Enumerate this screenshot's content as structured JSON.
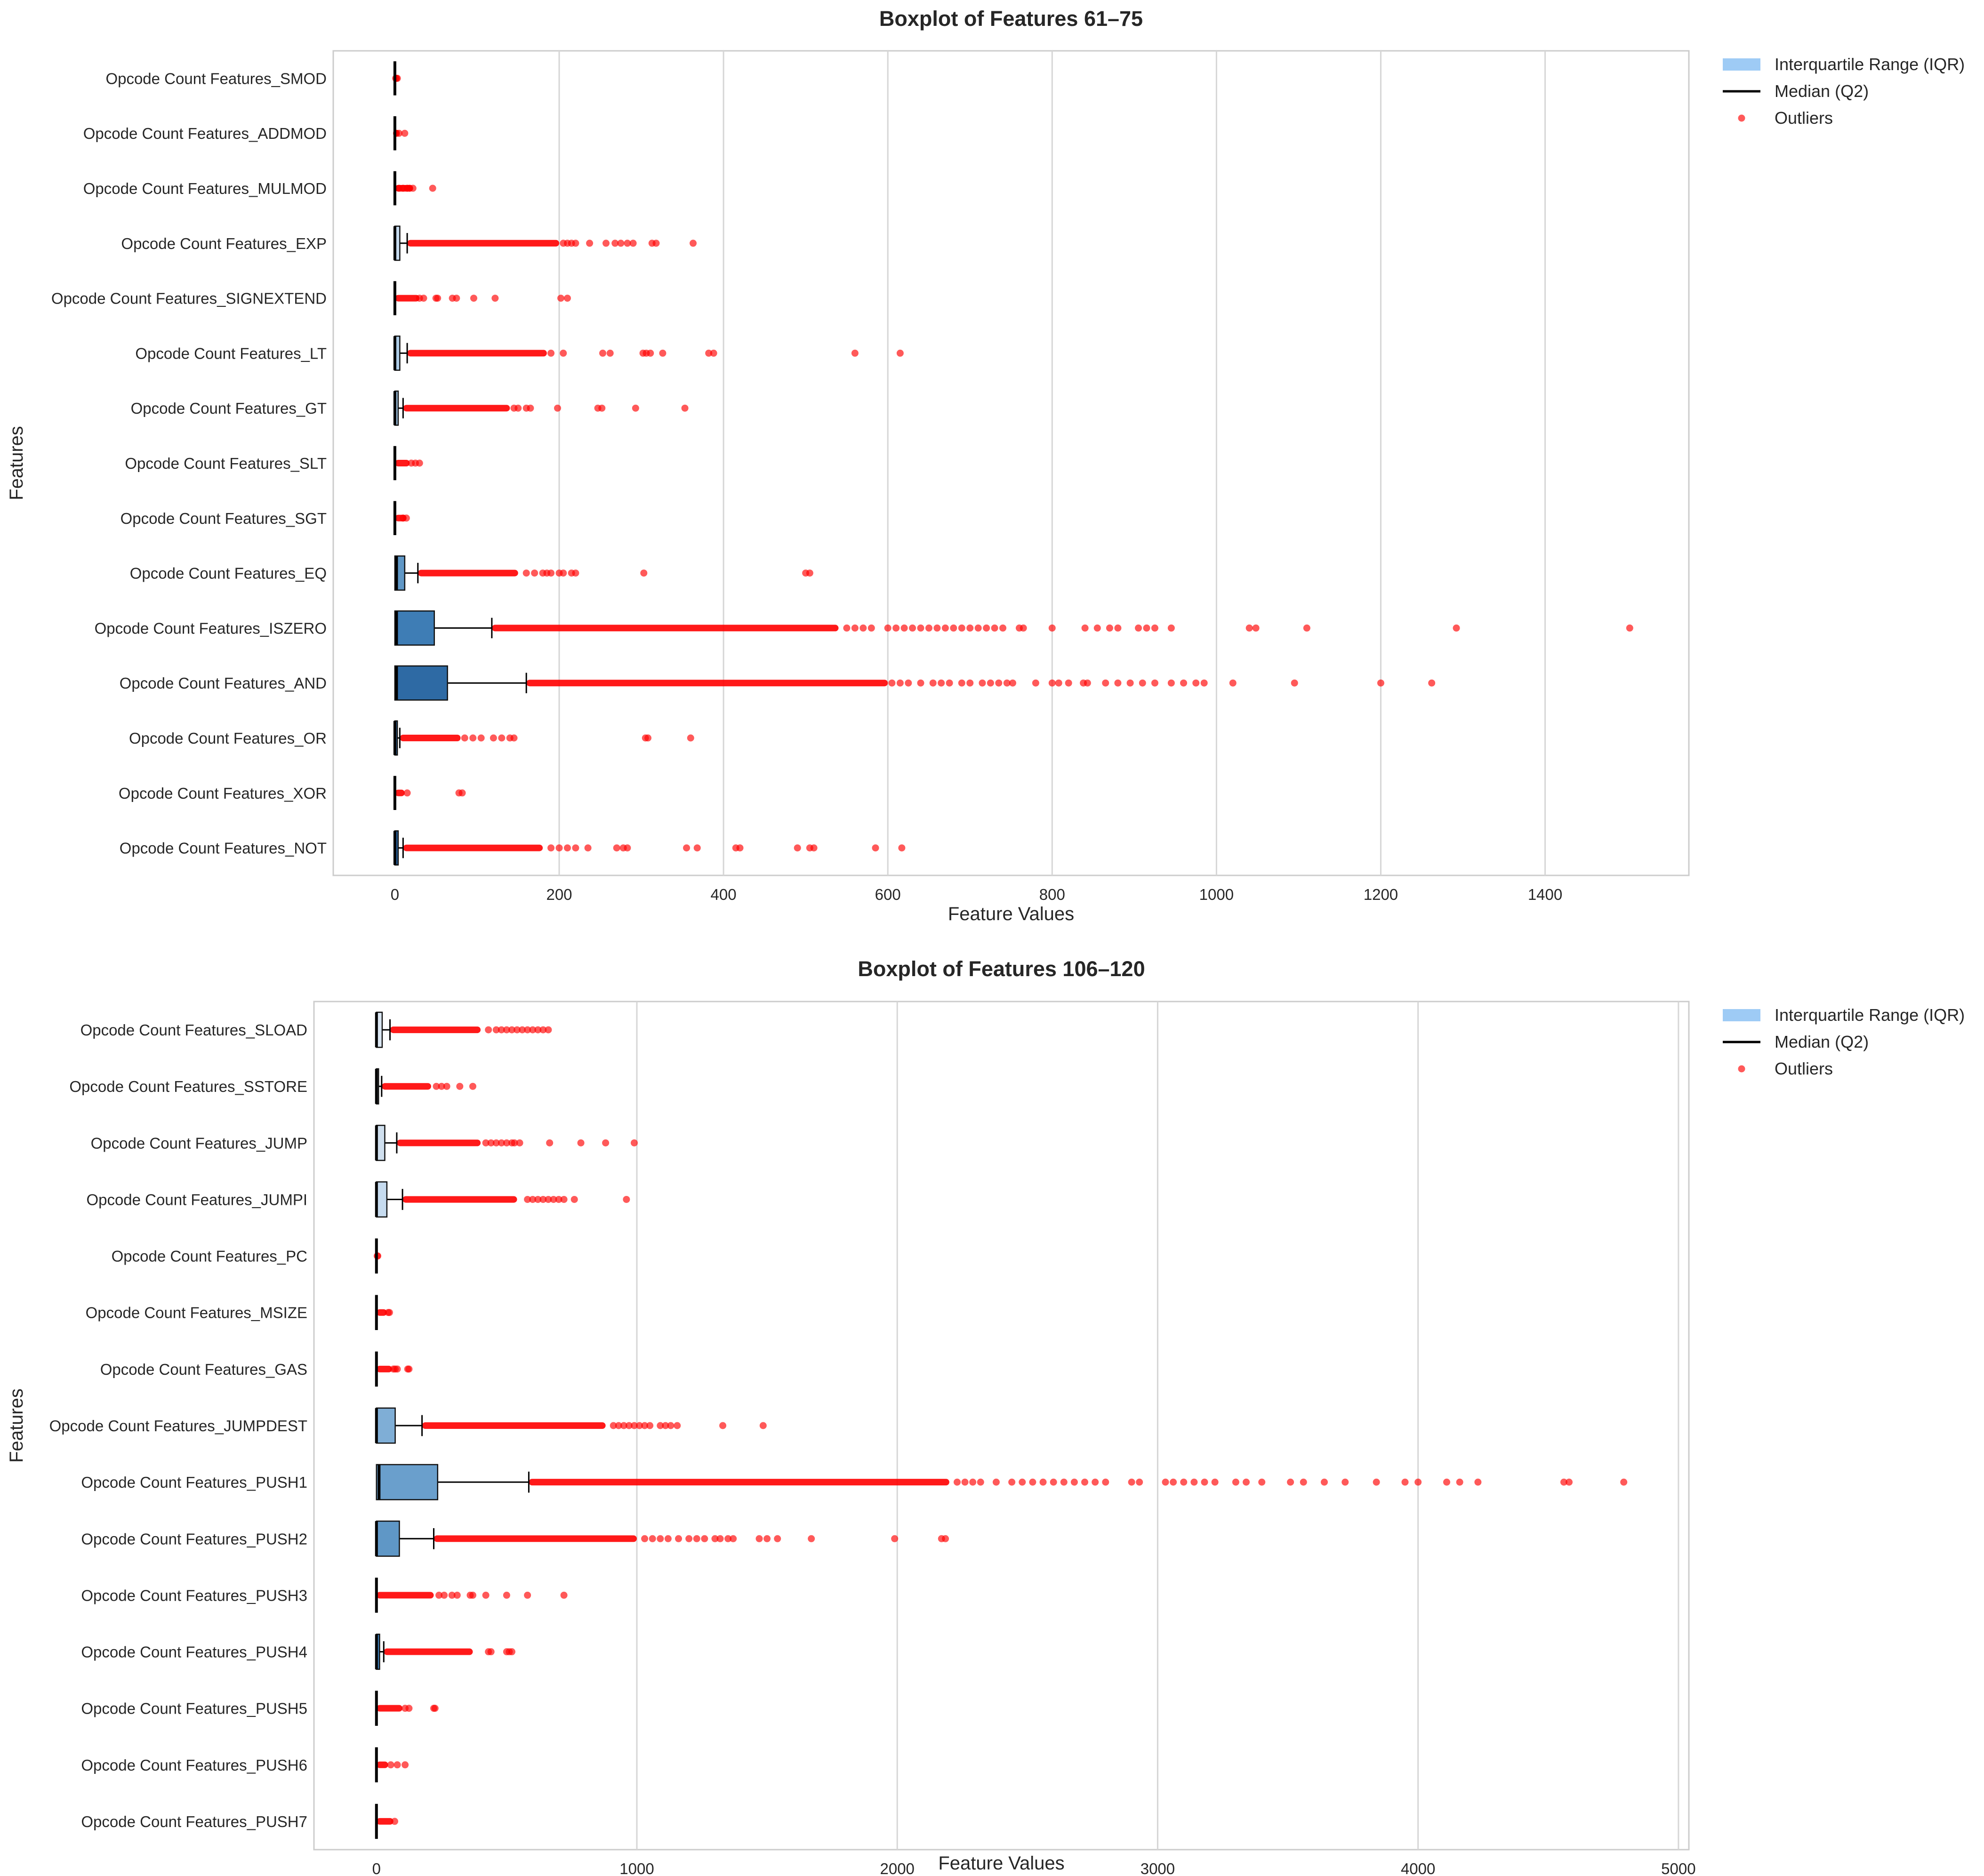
{
  "legend": {
    "iqr_label": "Interquartile Range (IQR)",
    "median_label": "Median (Q2)",
    "outliers_label": "Outliers"
  },
  "colors": {
    "median": "#000000",
    "whisker": "#000000",
    "outlier": "#ff0000",
    "legend_iqr": "#9ecbf5",
    "grid": "#d6d6d6",
    "frame": "#cccccc"
  },
  "chart_data": [
    {
      "type": "boxplot",
      "orientation": "horizontal",
      "title": "Boxplot of Features 61–75",
      "xlabel": "Feature Values",
      "ylabel": "Features",
      "xlim": [
        -75,
        1575
      ],
      "xticks": [
        0,
        200,
        400,
        600,
        800,
        1000,
        1200,
        1400
      ],
      "grid": "vertical",
      "legend_position": "outside-top-right",
      "features": [
        {
          "name": "Opcode Count Features_SMOD",
          "q1": 0,
          "median": 0,
          "q3": 0,
          "whisker_low": 0,
          "whisker_high": 0,
          "color": "#dbe7f3",
          "outliers_dense_to": 3,
          "outliers": [
            1,
            2,
            3
          ]
        },
        {
          "name": "Opcode Count Features_ADDMOD",
          "q1": 0,
          "median": 0,
          "q3": 0,
          "whisker_low": 0,
          "whisker_high": 0,
          "color": "#d5e3f0",
          "outliers_dense_to": 5,
          "outliers": [
            2,
            5,
            12
          ]
        },
        {
          "name": "Opcode Count Features_MULMOD",
          "q1": 0,
          "median": 0,
          "q3": 0,
          "whisker_low": 0,
          "whisker_high": 0,
          "color": "#cfdfee",
          "outliers_dense_to": 22,
          "outliers": [
            5,
            10,
            15,
            18,
            22,
            46
          ]
        },
        {
          "name": "Opcode Count Features_EXP",
          "q1": 0,
          "median": 0,
          "q3": 6,
          "whisker_low": 0,
          "whisker_high": 15,
          "color": "#c6dbef",
          "outliers_dense_to": 200,
          "outliers": [
            205,
            210,
            215,
            220,
            237,
            257,
            268,
            275,
            283,
            290,
            313,
            318,
            363
          ]
        },
        {
          "name": "Opcode Count Features_SIGNEXTEND",
          "q1": 0,
          "median": 0,
          "q3": 0,
          "whisker_low": 0,
          "whisker_high": 0,
          "color": "#bcd5ec",
          "outliers_dense_to": 30,
          "outliers": [
            30,
            35,
            50,
            52,
            70,
            75,
            96,
            122,
            202,
            210
          ]
        },
        {
          "name": "Opcode Count Features_LT",
          "q1": 0,
          "median": 0,
          "q3": 6,
          "whisker_low": 0,
          "whisker_high": 15,
          "color": "#aecde8",
          "outliers_dense_to": 185,
          "outliers": [
            190,
            205,
            253,
            262,
            302,
            306,
            311,
            326,
            382,
            388,
            560,
            615
          ]
        },
        {
          "name": "Opcode Count Features_GT",
          "q1": 0,
          "median": 0,
          "q3": 4,
          "whisker_low": 0,
          "whisker_high": 10,
          "color": "#9fc3e2",
          "outliers_dense_to": 140,
          "outliers": [
            145,
            150,
            160,
            165,
            198,
            247,
            252,
            293,
            353
          ]
        },
        {
          "name": "Opcode Count Features_SLT",
          "q1": 0,
          "median": 0,
          "q3": 0,
          "whisker_low": 0,
          "whisker_high": 0,
          "color": "#8fb8dc",
          "outliers_dense_to": 18,
          "outliers": [
            20,
            25,
            30
          ]
        },
        {
          "name": "Opcode Count Features_SGT",
          "q1": 0,
          "median": 0,
          "q3": 0,
          "whisker_low": 0,
          "whisker_high": 0,
          "color": "#7faed6",
          "outliers_dense_to": 14,
          "outliers": [
            10,
            14
          ]
        },
        {
          "name": "Opcode Count Features_EQ",
          "q1": 0,
          "median": 2,
          "q3": 12,
          "whisker_low": 0,
          "whisker_high": 28,
          "color": "#5f97c6",
          "outliers_dense_to": 150,
          "outliers": [
            160,
            170,
            180,
            185,
            190,
            200,
            205,
            215,
            220,
            303,
            500,
            505
          ]
        },
        {
          "name": "Opcode Count Features_ISZERO",
          "q1": 0,
          "median": 2,
          "q3": 48,
          "whisker_low": 0,
          "whisker_high": 118,
          "color": "#3e7db5",
          "outliers_dense_to": 540,
          "outliers": [
            550,
            560,
            570,
            580,
            600,
            610,
            620,
            630,
            640,
            650,
            660,
            670,
            680,
            690,
            700,
            710,
            720,
            730,
            740,
            760,
            765,
            800,
            840,
            855,
            870,
            880,
            905,
            915,
            925,
            945,
            1040,
            1048,
            1110,
            1292,
            1503
          ]
        },
        {
          "name": "Opcode Count Features_AND",
          "q1": 0,
          "median": 2,
          "q3": 64,
          "whisker_low": 0,
          "whisker_high": 160,
          "color": "#2e6aa4",
          "outliers_dense_to": 600,
          "outliers": [
            605,
            615,
            625,
            640,
            655,
            665,
            675,
            690,
            700,
            715,
            725,
            735,
            745,
            752,
            780,
            800,
            808,
            820,
            838,
            843,
            865,
            880,
            895,
            910,
            925,
            945,
            960,
            975,
            985,
            1020,
            1095,
            1200,
            1262
          ]
        },
        {
          "name": "Opcode Count Features_OR",
          "q1": 0,
          "median": 0,
          "q3": 3,
          "whisker_low": 0,
          "whisker_high": 6,
          "color": "#3872aa",
          "outliers_dense_to": 80,
          "outliers": [
            85,
            95,
            105,
            120,
            130,
            140,
            145,
            305,
            308,
            360
          ]
        },
        {
          "name": "Opcode Count Features_XOR",
          "q1": 0,
          "median": 0,
          "q3": 0,
          "whisker_low": 0,
          "whisker_high": 0,
          "color": "#4f88bd",
          "outliers_dense_to": 12,
          "outliers": [
            15,
            78,
            82
          ]
        },
        {
          "name": "Opcode Count Features_NOT",
          "q1": 0,
          "median": 0,
          "q3": 4,
          "whisker_low": 0,
          "whisker_high": 10,
          "color": "#2a639e",
          "outliers_dense_to": 180,
          "outliers": [
            190,
            200,
            210,
            220,
            235,
            270,
            278,
            283,
            355,
            368,
            415,
            420,
            490,
            505,
            510,
            585,
            617
          ]
        }
      ]
    },
    {
      "type": "boxplot",
      "orientation": "horizontal",
      "title": "Boxplot of Features 106–120",
      "xlabel": "Feature Values",
      "ylabel": "Features",
      "xlim": [
        -240,
        5040
      ],
      "xticks": [
        0,
        1000,
        2000,
        3000,
        4000,
        5000
      ],
      "grid": "vertical",
      "legend_position": "outside-top-right",
      "features": [
        {
          "name": "Opcode Count Features_SLOAD",
          "q1": 0,
          "median": 0,
          "q3": 22,
          "whisker_low": 0,
          "whisker_high": 52,
          "color": "#dbe7f3",
          "outliers_dense_to": 400,
          "outliers": [
            430,
            460,
            480,
            500,
            520,
            540,
            560,
            580,
            600,
            620,
            640,
            660
          ]
        },
        {
          "name": "Opcode Count Features_SSTORE",
          "q1": 0,
          "median": 0,
          "q3": 8,
          "whisker_low": 0,
          "whisker_high": 20,
          "color": "#d5e3f0",
          "outliers_dense_to": 210,
          "outliers": [
            230,
            250,
            270,
            320,
            370
          ]
        },
        {
          "name": "Opcode Count Features_JUMP",
          "q1": 0,
          "median": 0,
          "q3": 32,
          "whisker_low": 0,
          "whisker_high": 78,
          "color": "#cfdfee",
          "outliers_dense_to": 400,
          "outliers": [
            420,
            440,
            460,
            480,
            500,
            520,
            530,
            550,
            665,
            785,
            880,
            990
          ]
        },
        {
          "name": "Opcode Count Features_JUMPI",
          "q1": 0,
          "median": 0,
          "q3": 40,
          "whisker_low": 0,
          "whisker_high": 100,
          "color": "#c6dbef",
          "outliers_dense_to": 540,
          "outliers": [
            580,
            600,
            620,
            640,
            660,
            680,
            700,
            720,
            760,
            960
          ]
        },
        {
          "name": "Opcode Count Features_PC",
          "q1": 0,
          "median": 0,
          "q3": 0,
          "whisker_low": 0,
          "whisker_high": 0,
          "color": "#bcd5ec",
          "outliers_dense_to": 5,
          "outliers": [
            3,
            5
          ]
        },
        {
          "name": "Opcode Count Features_MSIZE",
          "q1": 0,
          "median": 0,
          "q3": 0,
          "whisker_low": 0,
          "whisker_high": 0,
          "color": "#aecde8",
          "outliers_dense_to": 40,
          "outliers": [
            45,
            50
          ]
        },
        {
          "name": "Opcode Count Features_GAS",
          "q1": 0,
          "median": 0,
          "q3": 0,
          "whisker_low": 0,
          "whisker_high": 0,
          "color": "#9fc3e2",
          "outliers_dense_to": 60,
          "outliers": [
            65,
            72,
            80,
            120,
            125
          ]
        },
        {
          "name": "Opcode Count Features_JUMPDEST",
          "q1": 0,
          "median": 0,
          "q3": 72,
          "whisker_low": 0,
          "whisker_high": 175,
          "color": "#7faed6",
          "outliers_dense_to": 880,
          "outliers": [
            910,
            930,
            950,
            970,
            990,
            1010,
            1030,
            1050,
            1090,
            1110,
            1130,
            1155,
            1330,
            1485
          ]
        },
        {
          "name": "Opcode Count Features_PUSH1",
          "q1": 0,
          "median": 10,
          "q3": 235,
          "whisker_low": 0,
          "whisker_high": 585,
          "color": "#6a9fcc",
          "outliers_dense_to": 2200,
          "outliers": [
            2230,
            2260,
            2290,
            2320,
            2380,
            2440,
            2480,
            2520,
            2560,
            2600,
            2640,
            2680,
            2720,
            2760,
            2800,
            2900,
            2930,
            3030,
            3060,
            3100,
            3140,
            3180,
            3220,
            3300,
            3340,
            3400,
            3510,
            3560,
            3640,
            3720,
            3840,
            3950,
            4000,
            4110,
            4160,
            4230,
            4560,
            4580,
            4790
          ]
        },
        {
          "name": "Opcode Count Features_PUSH2",
          "q1": 0,
          "median": 0,
          "q3": 88,
          "whisker_low": 0,
          "whisker_high": 220,
          "color": "#5f97c6",
          "outliers_dense_to": 1000,
          "outliers": [
            1030,
            1060,
            1090,
            1120,
            1160,
            1200,
            1230,
            1260,
            1300,
            1320,
            1350,
            1370,
            1470,
            1500,
            1540,
            1670,
            1990,
            2170,
            2185
          ]
        },
        {
          "name": "Opcode Count Features_PUSH3",
          "q1": 0,
          "median": 0,
          "q3": 0,
          "whisker_low": 0,
          "whisker_high": 0,
          "color": "#4f88bd",
          "outliers_dense_to": 220,
          "outliers": [
            240,
            260,
            290,
            310,
            360,
            370,
            420,
            500,
            580,
            720
          ]
        },
        {
          "name": "Opcode Count Features_PUSH4",
          "q1": 0,
          "median": 0,
          "q3": 12,
          "whisker_low": 0,
          "whisker_high": 28,
          "color": "#3e7db5",
          "outliers_dense_to": 370,
          "outliers": [
            430,
            440,
            500,
            510,
            520
          ]
        },
        {
          "name": "Opcode Count Features_PUSH5",
          "q1": 0,
          "median": 0,
          "q3": 0,
          "whisker_low": 0,
          "whisker_high": 0,
          "color": "#3872aa",
          "outliers_dense_to": 100,
          "outliers": [
            110,
            125,
            220,
            225
          ]
        },
        {
          "name": "Opcode Count Features_PUSH6",
          "q1": 0,
          "median": 0,
          "q3": 0,
          "whisker_low": 0,
          "whisker_high": 0,
          "color": "#2e6aa4",
          "outliers_dense_to": 45,
          "outliers": [
            55,
            80,
            110
          ]
        },
        {
          "name": "Opcode Count Features_PUSH7",
          "q1": 0,
          "median": 0,
          "q3": 0,
          "whisker_low": 0,
          "whisker_high": 0,
          "color": "#2a639e",
          "outliers_dense_to": 65,
          "outliers": [
            70
          ]
        }
      ]
    }
  ]
}
